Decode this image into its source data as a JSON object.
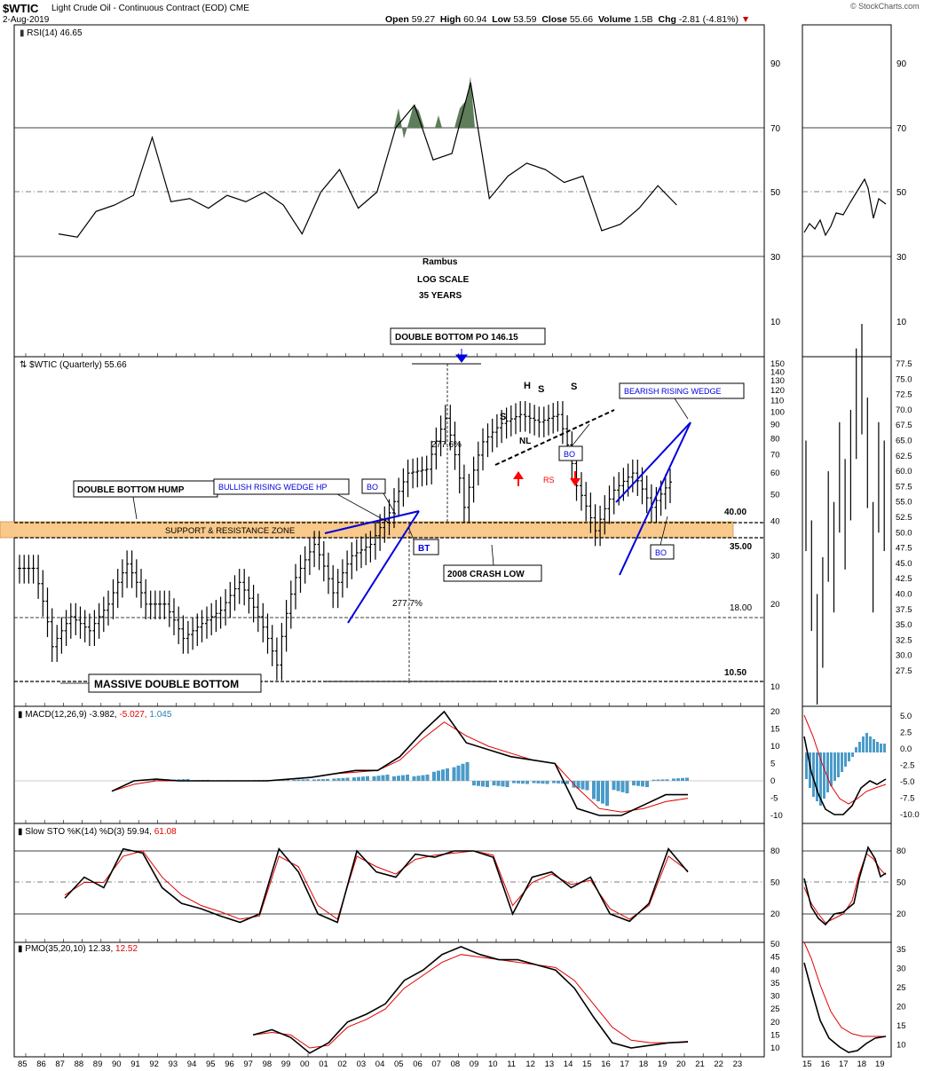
{
  "header": {
    "symbol": "$WTIC",
    "description": "Light Crude Oil - Continuous Contract (EOD)",
    "exchange": "CME",
    "date": "2-Aug-2019",
    "open_label": "Open",
    "open": "59.27",
    "high_label": "High",
    "high": "60.94",
    "low_label": "Low",
    "low": "53.59",
    "close_label": "Close",
    "close": "55.66",
    "volume_label": "Volume",
    "volume": "1.5B",
    "chg_label": "Chg",
    "chg": "-2.81 (-4.81%)",
    "credit": "© StockCharts.com"
  },
  "colors": {
    "rsi_fill": "#5e7d5a",
    "zone": "#f8c98a",
    "macd_hist": "#4a9bc9",
    "signal": "#e00000",
    "pattern": "#0000e0",
    "red_arrow": "#ff0000"
  },
  "panels": {
    "rsi_label": "RSI(14) 46.65",
    "main_label": "$WTIC (Quarterly) 55.66",
    "macd_label_a": "MACD(12,26,9) -3.982,",
    "macd_label_b": "-5.027,",
    "macd_label_c": "1.045",
    "sto_label_a": "Slow STO %K(14) %D(3) 59.94,",
    "sto_label_b": "61.08",
    "pmo_label_a": "PMO(35,20,10) 12.33,",
    "pmo_label_b": "12.52"
  },
  "annotations": {
    "rambus": "Rambus",
    "log_scale": "LOG SCALE",
    "years": "35 YEARS",
    "double_bottom_po": "DOUBLE BOTTOM PO 146.15",
    "double_bottom_hump": "DOUBLE BOTTOM HUMP",
    "bullish_wedge": "BULLISH RISING WEDGE HP",
    "bearish_wedge": "BEARISH RISING WEDGE",
    "support_zone": "SUPPORT & RESISTANCE ZONE",
    "crash_low": "2008 CRASH LOW",
    "massive_db": "MASSIVE DOUBLE BOTTOM",
    "bo": "BO",
    "bt": "BT",
    "nl": "NL",
    "rs": "RS",
    "h": "H",
    "s": "S",
    "pct1": "277.6%",
    "pct2": "277.7%",
    "lvl40": "40.00",
    "lvl35": "35.00",
    "lvl18": "18.00",
    "lvl1050": "10.50"
  },
  "chart_data": [
    {
      "type": "line",
      "name": "RSI(14)",
      "x": [
        "86Q2",
        "87",
        "88",
        "89",
        "90",
        "91",
        "92",
        "93",
        "94",
        "95",
        "96",
        "97",
        "98",
        "99",
        "00",
        "01",
        "02",
        "03",
        "04",
        "05",
        "06",
        "07",
        "08",
        "09",
        "10",
        "11",
        "12",
        "13",
        "14",
        "15",
        "16",
        "17",
        "18",
        "19"
      ],
      "values": [
        37,
        36,
        44,
        46,
        49,
        67,
        47,
        48,
        45,
        49,
        47,
        50,
        46,
        37,
        50,
        57,
        45,
        50,
        70,
        77,
        60,
        62,
        84,
        48,
        55,
        59,
        57,
        53,
        55,
        38,
        40,
        45,
        52,
        46
      ],
      "ylim": [
        0,
        100
      ],
      "reference_lines": [
        30,
        50,
        70
      ],
      "yticks": [
        "90",
        "70",
        "50",
        "30",
        "10"
      ]
    },
    {
      "type": "candlestick",
      "name": "$WTIC (Quarterly)",
      "scale": "log",
      "last": 55.66,
      "x_labels": [
        "85",
        "86",
        "87",
        "88",
        "89",
        "90",
        "91",
        "92",
        "93",
        "94",
        "95",
        "96",
        "97",
        "98",
        "99",
        "00",
        "01",
        "02",
        "03",
        "04",
        "05",
        "06",
        "07",
        "08",
        "09",
        "10",
        "11",
        "12",
        "13",
        "14",
        "15",
        "16",
        "17",
        "18",
        "19",
        "20",
        "21",
        "22",
        "23"
      ],
      "y_ticks": [
        "150",
        "140",
        "130",
        "120",
        "110",
        "100",
        "90",
        "80",
        "70",
        "60",
        "50",
        "40",
        "30",
        "20",
        "10"
      ],
      "closes": [
        [
          85,
          27
        ],
        [
          86,
          14
        ],
        [
          87,
          18
        ],
        [
          88,
          16
        ],
        [
          89,
          20
        ],
        [
          90,
          28
        ],
        [
          91,
          20
        ],
        [
          92,
          20
        ],
        [
          93,
          15
        ],
        [
          94,
          17
        ],
        [
          95,
          19
        ],
        [
          96,
          24
        ],
        [
          97,
          18
        ],
        [
          98,
          12
        ],
        [
          99,
          25
        ],
        [
          100,
          33
        ],
        [
          101,
          22
        ],
        [
          102,
          30
        ],
        [
          103,
          33
        ],
        [
          104,
          43
        ],
        [
          105,
          60
        ],
        [
          106,
          62
        ],
        [
          107,
          95
        ],
        [
          108,
          45
        ],
        [
          109,
          78
        ],
        [
          110,
          91
        ],
        [
          111,
          98
        ],
        [
          112,
          92
        ],
        [
          113,
          98
        ],
        [
          114,
          54
        ],
        [
          115,
          37
        ],
        [
          116,
          52
        ],
        [
          117,
          60
        ],
        [
          118,
          45
        ],
        [
          119,
          55.66
        ]
      ],
      "levels": [
        40.0,
        35.0,
        18.0,
        10.5
      ],
      "support_zone": [
        35,
        40
      ],
      "weekly_inset_y_ticks": [
        "77.5",
        "75.0",
        "72.5",
        "70.0",
        "67.5",
        "65.0",
        "62.5",
        "60.0",
        "57.5",
        "55.0",
        "52.5",
        "50.0",
        "47.5",
        "45.0",
        "42.5",
        "40.0",
        "37.5",
        "35.0",
        "32.5",
        "30.0",
        "27.5"
      ],
      "weekly_inset_x_labels": [
        "15",
        "16",
        "17",
        "18",
        "19"
      ]
    },
    {
      "type": "line",
      "name": "MACD(12,26,9)",
      "series": [
        {
          "name": "MACD",
          "values": [
            -3,
            0,
            0.5,
            0,
            0,
            0,
            0,
            0,
            0.5,
            1,
            2,
            3,
            3,
            7,
            14,
            20,
            11,
            9,
            7,
            6,
            5,
            -8,
            -10,
            -10,
            -7,
            -4,
            -3.98
          ]
        },
        {
          "name": "Signal",
          "values": [
            -3,
            -1,
            0,
            0,
            0,
            0,
            0,
            0,
            0.5,
            1,
            2,
            2.5,
            3,
            6,
            12,
            17,
            13,
            10,
            8,
            6,
            5,
            -2,
            -8,
            -9,
            -8,
            -6,
            -5.03
          ]
        }
      ],
      "histogram_last": 1.045,
      "yticks": [
        "20",
        "15",
        "10",
        "5",
        "0",
        "-5",
        "-10"
      ]
    },
    {
      "type": "line",
      "name": "Slow STO %K(14) %D(3)",
      "series": [
        {
          "name": "%K",
          "values": [
            35,
            55,
            45,
            82,
            78,
            45,
            30,
            25,
            18,
            12,
            20,
            82,
            60,
            20,
            12,
            80,
            60,
            55,
            77,
            74,
            80,
            80,
            74,
            20,
            55,
            60,
            45,
            55,
            20,
            13,
            30,
            82,
            59.94
          ]
        },
        {
          "name": "%D",
          "values": [
            38,
            50,
            50,
            75,
            80,
            55,
            38,
            28,
            22,
            15,
            18,
            75,
            65,
            28,
            15,
            75,
            65,
            58,
            72,
            76,
            78,
            80,
            76,
            28,
            50,
            58,
            48,
            52,
            25,
            15,
            28,
            75,
            61.08
          ]
        }
      ],
      "ylim": [
        0,
        100
      ],
      "reference_lines": [
        20,
        50,
        80
      ],
      "yticks": [
        "80",
        "50",
        "20"
      ]
    },
    {
      "type": "line",
      "name": "PMO(35,20,10)",
      "series": [
        {
          "name": "PMO",
          "values": [
            15,
            17,
            14,
            8,
            12,
            20,
            23,
            27,
            36,
            40,
            46,
            49,
            46,
            44,
            44,
            42,
            40,
            33,
            22,
            12,
            10,
            11,
            12,
            12.33
          ]
        },
        {
          "name": "Signal",
          "values": [
            15,
            16,
            15,
            10,
            11,
            18,
            21,
            25,
            33,
            38,
            43,
            46,
            45,
            44,
            43,
            42,
            41,
            36,
            27,
            18,
            13,
            12,
            12,
            12.52
          ]
        }
      ],
      "yticks": [
        "50",
        "45",
        "40",
        "35",
        "30",
        "25",
        "20",
        "15",
        "10"
      ]
    }
  ]
}
